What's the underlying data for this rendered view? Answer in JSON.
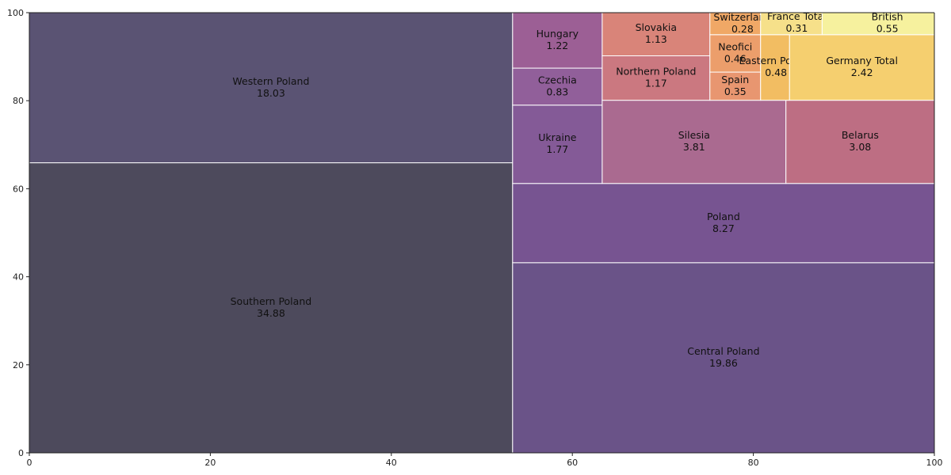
{
  "chart_data": {
    "type": "treemap",
    "title": "",
    "xlabel": "",
    "ylabel": "",
    "xlim": [
      0,
      100
    ],
    "ylim": [
      0,
      100
    ],
    "x_ticks": [
      "0",
      "20",
      "40",
      "60",
      "80",
      "100"
    ],
    "y_ticks": [
      "0",
      "20",
      "40",
      "60",
      "80",
      "100"
    ],
    "grid": false,
    "legend": "none",
    "tiles": [
      {
        "label": "Southern Poland",
        "value": "34.88",
        "color": "#4d4a5c"
      },
      {
        "label": "Western Poland",
        "value": "18.03",
        "color": "#5a5373"
      },
      {
        "label": "Central Poland",
        "value": "19.86",
        "color": "#6a5388"
      },
      {
        "label": "Poland",
        "value": "8.27",
        "color": "#775491"
      },
      {
        "label": "Ukraine",
        "value": "1.77",
        "color": "#845a97"
      },
      {
        "label": "Czechia",
        "value": "0.83",
        "color": "#915f9a"
      },
      {
        "label": "Hungary",
        "value": "1.22",
        "color": "#9c5f95"
      },
      {
        "label": "Silesia",
        "value": "3.81",
        "color": "#aa6a90"
      },
      {
        "label": "Belarus",
        "value": "3.08",
        "color": "#bd6e83"
      },
      {
        "label": "Northern Poland",
        "value": "1.17",
        "color": "#cb7880"
      },
      {
        "label": "Slovakia",
        "value": "1.13",
        "color": "#d98479"
      },
      {
        "label": "Spain",
        "value": "0.35",
        "color": "#e89670"
      },
      {
        "label": "Neofici",
        "value": "0.46",
        "color": "#ec9e6b"
      },
      {
        "label": "Switzerland",
        "value": "0.28",
        "color": "#f0a866"
      },
      {
        "label": "Eastern Poland",
        "value": "0.48",
        "color": "#f2bd62"
      },
      {
        "label": "Germany Total",
        "value": "2.42",
        "color": "#f5cf6f"
      },
      {
        "label": "France Total",
        "value": "0.31",
        "color": "#f6e08a"
      },
      {
        "label": "British",
        "value": "0.55",
        "color": "#f6f19e"
      }
    ]
  }
}
